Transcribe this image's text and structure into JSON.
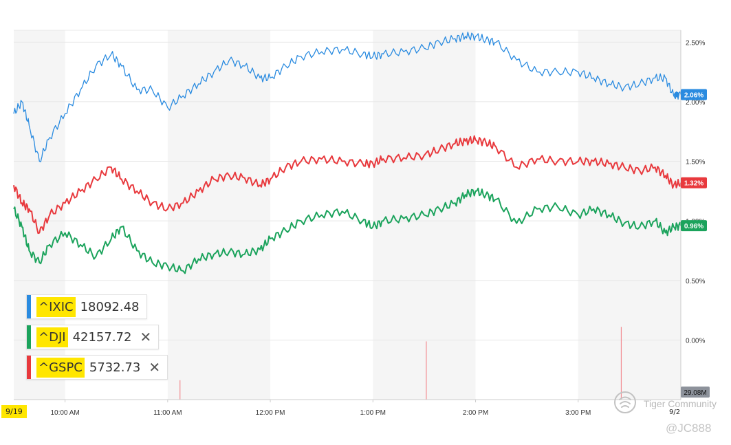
{
  "chart_data": {
    "type": "line",
    "x_ticks": [
      "10:00 AM",
      "11:00 AM",
      "12:00 PM",
      "1:00 PM",
      "2:00 PM",
      "3:00 PM"
    ],
    "y_ticks": [
      "2.50%",
      "2.00%",
      "1.50%",
      "1.00%",
      "0.50%",
      "0.00%"
    ],
    "ylim": [
      -0.5,
      2.6
    ],
    "grid": true,
    "session_start_label": "9/19",
    "session_end_label": "9/2",
    "volume_label": "29.08M",
    "series": [
      {
        "name": "^IXIC",
        "value_label": "18092.48",
        "end_label": "2.06%",
        "color": "#2a8be0",
        "times": [
          9.5,
          9.58,
          9.65,
          9.75,
          9.85,
          10.0,
          10.15,
          10.3,
          10.45,
          10.55,
          10.7,
          10.85,
          11.0,
          11.15,
          11.3,
          11.45,
          11.6,
          11.75,
          11.9,
          12.0,
          12.15,
          12.3,
          12.5,
          12.7,
          12.9,
          13.0,
          13.1,
          13.3,
          13.5,
          13.65,
          13.8,
          13.9,
          14.0,
          14.1,
          14.2,
          14.4,
          14.6,
          14.8,
          15.0,
          15.15,
          15.3,
          15.45,
          15.6,
          15.75,
          15.85,
          15.93,
          16.0
        ],
        "values": [
          1.9,
          2.0,
          1.8,
          1.5,
          1.7,
          1.9,
          2.1,
          2.3,
          2.4,
          2.3,
          2.1,
          2.1,
          1.95,
          2.05,
          2.15,
          2.25,
          2.35,
          2.3,
          2.2,
          2.2,
          2.3,
          2.38,
          2.42,
          2.44,
          2.4,
          2.38,
          2.4,
          2.42,
          2.45,
          2.5,
          2.53,
          2.55,
          2.55,
          2.52,
          2.5,
          2.35,
          2.25,
          2.25,
          2.25,
          2.2,
          2.15,
          2.12,
          2.15,
          2.2,
          2.2,
          2.05,
          2.06
        ]
      },
      {
        "name": "^GSPC",
        "value_label": "5732.73",
        "end_label": "1.32%",
        "color": "#e8393d",
        "times": [
          9.5,
          9.58,
          9.65,
          9.75,
          9.85,
          10.0,
          10.15,
          10.3,
          10.45,
          10.55,
          10.7,
          10.85,
          11.0,
          11.15,
          11.3,
          11.45,
          11.6,
          11.75,
          11.9,
          12.0,
          12.15,
          12.3,
          12.5,
          12.7,
          12.9,
          13.0,
          13.1,
          13.3,
          13.5,
          13.65,
          13.8,
          13.9,
          14.0,
          14.1,
          14.2,
          14.4,
          14.6,
          14.8,
          15.0,
          15.15,
          15.3,
          15.45,
          15.6,
          15.75,
          15.85,
          15.93,
          16.0
        ],
        "values": [
          1.3,
          1.15,
          1.1,
          0.9,
          1.05,
          1.15,
          1.25,
          1.35,
          1.45,
          1.35,
          1.25,
          1.15,
          1.1,
          1.15,
          1.25,
          1.35,
          1.38,
          1.36,
          1.3,
          1.35,
          1.45,
          1.5,
          1.52,
          1.5,
          1.48,
          1.48,
          1.52,
          1.53,
          1.55,
          1.6,
          1.65,
          1.67,
          1.68,
          1.66,
          1.62,
          1.45,
          1.52,
          1.5,
          1.5,
          1.5,
          1.48,
          1.45,
          1.42,
          1.45,
          1.38,
          1.3,
          1.32
        ]
      },
      {
        "name": "^DJI",
        "value_label": "42157.72",
        "end_label": "0.96%",
        "color": "#1ba35c",
        "times": [
          9.5,
          9.58,
          9.65,
          9.75,
          9.85,
          10.0,
          10.15,
          10.3,
          10.45,
          10.55,
          10.7,
          10.85,
          11.0,
          11.15,
          11.3,
          11.45,
          11.6,
          11.75,
          11.9,
          12.0,
          12.15,
          12.3,
          12.5,
          12.7,
          12.9,
          13.0,
          13.1,
          13.3,
          13.5,
          13.65,
          13.8,
          13.9,
          14.0,
          14.1,
          14.2,
          14.4,
          14.6,
          14.8,
          15.0,
          15.15,
          15.3,
          15.45,
          15.6,
          15.75,
          15.85,
          15.93,
          16.0
        ],
        "values": [
          1.1,
          0.95,
          0.75,
          0.65,
          0.8,
          0.9,
          0.8,
          0.7,
          0.85,
          0.95,
          0.75,
          0.65,
          0.62,
          0.58,
          0.68,
          0.72,
          0.74,
          0.72,
          0.76,
          0.85,
          0.92,
          1.0,
          1.05,
          1.08,
          1.0,
          0.95,
          1.0,
          1.02,
          1.05,
          1.1,
          1.15,
          1.22,
          1.25,
          1.22,
          1.18,
          0.98,
          1.1,
          1.12,
          1.05,
          1.1,
          1.05,
          0.98,
          0.95,
          1.0,
          0.9,
          0.95,
          0.96
        ]
      }
    ],
    "volume_spikes": [
      {
        "time": 11.12,
        "level": 0.2
      },
      {
        "time": 13.52,
        "level": 0.6
      },
      {
        "time": 15.42,
        "level": 0.75
      }
    ]
  },
  "legend": {
    "ixic": {
      "symbol": "^IXIC",
      "value": "18092.48"
    },
    "dji": {
      "symbol": "^DJI",
      "value": "42157.72",
      "close": "✕"
    },
    "gspc": {
      "symbol": "^GSPC",
      "value": "5732.73",
      "close": "✕"
    }
  },
  "watermark": {
    "brand": "Tiger Community",
    "user": "@JC888"
  },
  "colors": {
    "ixic": "#2a8be0",
    "dji": "#1ba35c",
    "gspc": "#e8393d",
    "band": "#f5f5f5",
    "grid": "#e8e8e8",
    "volume": "#f28b91"
  }
}
